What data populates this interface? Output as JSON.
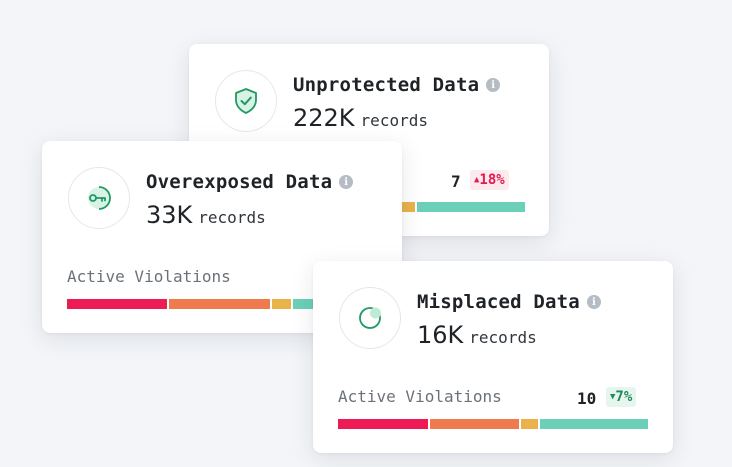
{
  "colors": {
    "red": "#ee1a55",
    "orange": "#ef7a4d",
    "yellow": "#e9b24a",
    "teal": "#6ccfb8",
    "icon_green": "#1e9a62"
  },
  "cards": {
    "unprotected": {
      "icon": "shield-check-icon",
      "title": "Unprotected Data",
      "records_value": "222K",
      "records_unit": "records",
      "count": "7",
      "change": "18%",
      "change_dir": "up"
    },
    "overexposed": {
      "icon": "key-icon",
      "title": "Overexposed Data",
      "records_value": "33K",
      "records_unit": "records",
      "violations_label": "Active Violations",
      "bar_segments": [
        0.33,
        0.33,
        0.065,
        0.275
      ]
    },
    "misplaced": {
      "icon": "misplaced-circle-icon",
      "title": "Misplaced Data",
      "records_value": "16K",
      "records_unit": "records",
      "violations_label": "Active Violations",
      "count": "10",
      "change": "7%",
      "change_dir": "down",
      "bar_segments": [
        0.295,
        0.295,
        0.055,
        0.355
      ]
    }
  }
}
